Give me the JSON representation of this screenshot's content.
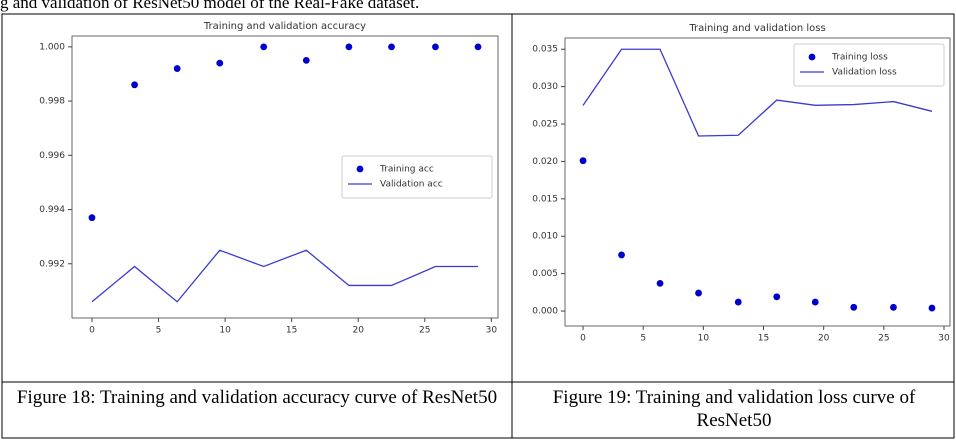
{
  "header_text": "g and validation of ResNet50 model of the Real-Fake dataset.",
  "chart_data": [
    {
      "type": "scatter_line",
      "title": "Training and validation accuracy",
      "caption": "Figure 18: Training and validation accuracy curve of ResNet50",
      "x": [
        0,
        3.2,
        6.4,
        9.6,
        12.9,
        16.1,
        19.3,
        22.5,
        25.8,
        29
      ],
      "series": [
        {
          "name": "Training acc",
          "color": "#0000cc",
          "style": "dots",
          "values": [
            0.9937,
            0.9986,
            0.9992,
            0.9994,
            1.0,
            0.9995,
            1.0,
            1.0,
            1.0,
            1.0
          ]
        },
        {
          "name": "Validation acc",
          "color": "#3a3ad0",
          "style": "line",
          "values": [
            0.9906,
            0.9919,
            0.9906,
            0.9925,
            0.9919,
            0.9925,
            0.9912,
            0.9912,
            0.9919,
            0.9919
          ]
        }
      ],
      "xlim": [
        -1.5,
        30.5
      ],
      "xticks": [
        0,
        5,
        10,
        15,
        20,
        25,
        30
      ],
      "ylim": [
        0.99,
        1.0004
      ],
      "yticks": [
        0.992,
        0.994,
        0.996,
        0.998,
        {
          "value": 1,
          "label": "1.000"
        }
      ],
      "legend": "center right"
    },
    {
      "type": "scatter_line",
      "title": "Training and validation loss",
      "caption": "Figure 19: Training and validation loss curve of ResNet50",
      "x": [
        0,
        3.2,
        6.4,
        9.6,
        12.9,
        16.1,
        19.3,
        22.5,
        25.8,
        29
      ],
      "series": [
        {
          "name": "Training loss",
          "color": "#0000cc",
          "style": "dots",
          "values": [
            0.0201,
            0.0075,
            0.0037,
            0.0024,
            0.0012,
            0.0019,
            0.0012,
            0.0005,
            0.0005,
            0.0004
          ]
        },
        {
          "name": "Validation loss",
          "color": "#3a3ad0",
          "style": "line",
          "values": [
            0.0275,
            0.035,
            0.035,
            0.0234,
            0.0235,
            0.0282,
            0.0275,
            0.0276,
            0.028,
            0.0267
          ]
        }
      ],
      "xlim": [
        -1.5,
        30.5
      ],
      "xticks": [
        0,
        5,
        10,
        15,
        20,
        25,
        30
      ],
      "ylim": [
        -0.002,
        0.0365
      ],
      "yticks": [
        {
          "value": 0,
          "label": "0.000"
        },
        0.005,
        {
          "value": 0.01,
          "label": "0.010"
        },
        0.015,
        {
          "value": 0.02,
          "label": "0.020"
        },
        0.025,
        {
          "value": 0.03,
          "label": "0.030"
        },
        0.035
      ],
      "legend": "upper right"
    }
  ]
}
